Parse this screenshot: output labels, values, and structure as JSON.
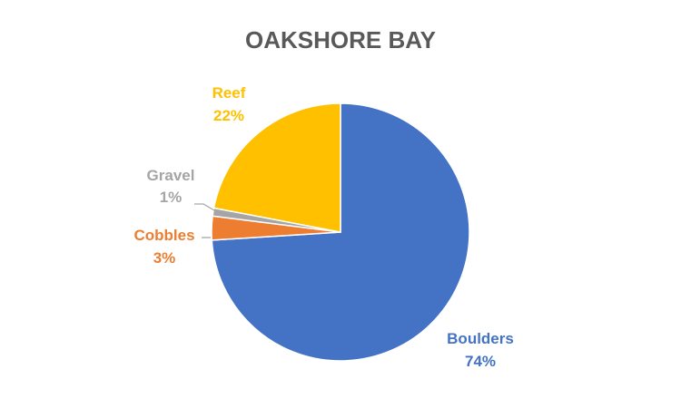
{
  "chart_data": {
    "type": "pie",
    "title": "OAKSHORE BAY",
    "start_angle_deg": 0,
    "direction": "clockwise",
    "legend": "none",
    "slices": [
      {
        "label": "Boulders",
        "value": 74,
        "percent_label": "74%",
        "color": "#4472C4"
      },
      {
        "label": "Cobbles",
        "value": 3,
        "percent_label": "3%",
        "color": "#ED7D31"
      },
      {
        "label": "Gravel",
        "value": 1,
        "percent_label": "1%",
        "color": "#A5A5A5"
      },
      {
        "label": "Reef",
        "value": 22,
        "percent_label": "22%",
        "color": "#FFC000"
      }
    ]
  }
}
